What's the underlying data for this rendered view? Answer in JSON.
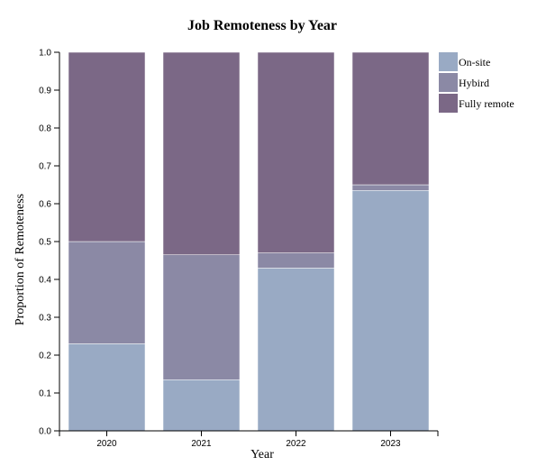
{
  "chart_data": {
    "type": "bar",
    "stacked": true,
    "title": "Job Remoteness by Year",
    "xlabel": "Year",
    "ylabel": "Proportion of Remoteness",
    "categories": [
      "2020",
      "2021",
      "2022",
      "2023"
    ],
    "series": [
      {
        "name": "On-site",
        "color": "#99aac4",
        "values": [
          0.23,
          0.135,
          0.43,
          0.635
        ]
      },
      {
        "name": "Hybird",
        "color": "#8b89a5",
        "values": [
          0.27,
          0.33,
          0.04,
          0.015
        ]
      },
      {
        "name": "Fully remote",
        "color": "#7b6886",
        "values": [
          0.5,
          0.535,
          0.53,
          0.35
        ]
      }
    ],
    "ylim": [
      0,
      1.0
    ],
    "yticks": [
      "0.0",
      "0.1",
      "0.2",
      "0.3",
      "0.4",
      "0.5",
      "0.6",
      "0.7",
      "0.8",
      "0.9",
      "1.0"
    ],
    "grid": false,
    "legend": "top-right"
  }
}
